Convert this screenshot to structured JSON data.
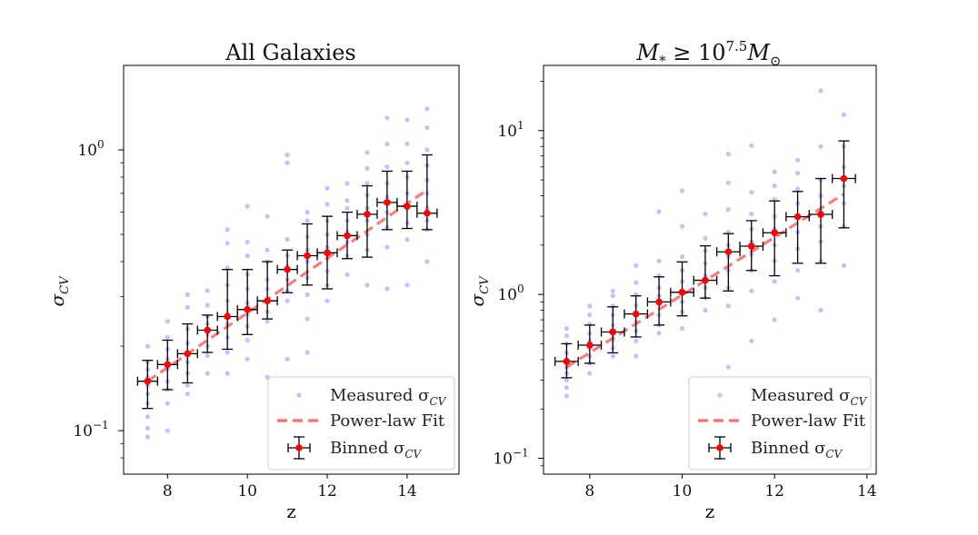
{
  "chart_data": [
    {
      "type": "scatter",
      "title": "All Galaxies",
      "xlabel": "z",
      "ylabel": "σ_CV",
      "xlim": [
        6.9,
        15.3
      ],
      "ylim": [
        0.07,
        2.0
      ],
      "yscale": "log",
      "xticks": [
        8,
        10,
        12,
        14
      ],
      "yticks": [
        {
          "value": 0.1,
          "base": "10",
          "exp": "−1"
        },
        {
          "value": 1.0,
          "base": "10",
          "exp": "0"
        }
      ],
      "legend": {
        "placement": "lower-right",
        "entries": [
          {
            "name": "Measured σ_CV",
            "main": "Measured σ",
            "sub": "CV"
          },
          {
            "name": "Power-law Fit",
            "main": "Power-law Fit",
            "sub": ""
          },
          {
            "name": "Binned σ_CV",
            "main": "Binned σ",
            "sub": "CV"
          }
        ]
      },
      "fit": {
        "x": [
          7.5,
          14.5
        ],
        "y": [
          0.15,
          0.72
        ]
      },
      "binned": {
        "x": [
          7.5,
          8.0,
          8.5,
          9.0,
          9.5,
          10.0,
          10.5,
          11.0,
          11.5,
          12.0,
          12.5,
          13.0,
          13.5,
          14.0,
          14.5
        ],
        "y": [
          0.15,
          0.172,
          0.188,
          0.228,
          0.255,
          0.27,
          0.29,
          0.375,
          0.42,
          0.43,
          0.495,
          0.59,
          0.65,
          0.63,
          0.595
        ],
        "ylow": [
          0.12,
          0.14,
          0.148,
          0.19,
          0.195,
          0.22,
          0.25,
          0.31,
          0.33,
          0.32,
          0.41,
          0.415,
          0.52,
          0.525,
          0.52
        ],
        "yhigh": [
          0.178,
          0.21,
          0.24,
          0.258,
          0.375,
          0.375,
          0.4,
          0.44,
          0.545,
          0.58,
          0.6,
          0.745,
          0.84,
          0.84,
          0.96
        ],
        "xerr": 0.25
      },
      "measured": [
        [
          7.5,
          0.095
        ],
        [
          7.5,
          0.102
        ],
        [
          7.5,
          0.112
        ],
        [
          7.5,
          0.125
        ],
        [
          7.5,
          0.135
        ],
        [
          7.5,
          0.145
        ],
        [
          7.5,
          0.155
        ],
        [
          7.5,
          0.165
        ],
        [
          7.5,
          0.175
        ],
        [
          7.5,
          0.2
        ],
        [
          8.0,
          0.1
        ],
        [
          8.0,
          0.125
        ],
        [
          8.0,
          0.14
        ],
        [
          8.0,
          0.15
        ],
        [
          8.0,
          0.165
        ],
        [
          8.0,
          0.18
        ],
        [
          8.0,
          0.195
        ],
        [
          8.0,
          0.215
        ],
        [
          8.0,
          0.245
        ],
        [
          8.5,
          0.135
        ],
        [
          8.5,
          0.145
        ],
        [
          8.5,
          0.16
        ],
        [
          8.5,
          0.175
        ],
        [
          8.5,
          0.19
        ],
        [
          8.5,
          0.205
        ],
        [
          8.5,
          0.23
        ],
        [
          8.5,
          0.275
        ],
        [
          8.5,
          0.305
        ],
        [
          9.0,
          0.16
        ],
        [
          9.0,
          0.185
        ],
        [
          9.0,
          0.2
        ],
        [
          9.0,
          0.22
        ],
        [
          9.0,
          0.24
        ],
        [
          9.0,
          0.255
        ],
        [
          9.0,
          0.28
        ],
        [
          9.0,
          0.315
        ],
        [
          9.5,
          0.16
        ],
        [
          9.5,
          0.19
        ],
        [
          9.5,
          0.215
        ],
        [
          9.5,
          0.24
        ],
        [
          9.5,
          0.26
        ],
        [
          9.5,
          0.29
        ],
        [
          9.5,
          0.33
        ],
        [
          9.5,
          0.38
        ],
        [
          9.5,
          0.465
        ],
        [
          9.5,
          0.52
        ],
        [
          10.0,
          0.18
        ],
        [
          10.0,
          0.21
        ],
        [
          10.0,
          0.235
        ],
        [
          10.0,
          0.26
        ],
        [
          10.0,
          0.285
        ],
        [
          10.0,
          0.32
        ],
        [
          10.0,
          0.36
        ],
        [
          10.0,
          0.42
        ],
        [
          10.0,
          0.47
        ],
        [
          10.0,
          0.63
        ],
        [
          10.5,
          0.155
        ],
        [
          10.5,
          0.245
        ],
        [
          10.5,
          0.265
        ],
        [
          10.5,
          0.29
        ],
        [
          10.5,
          0.32
        ],
        [
          10.5,
          0.345
        ],
        [
          10.5,
          0.4
        ],
        [
          10.5,
          0.44
        ],
        [
          10.5,
          0.58
        ],
        [
          11.0,
          0.18
        ],
        [
          11.0,
          0.29
        ],
        [
          11.0,
          0.315
        ],
        [
          11.0,
          0.345
        ],
        [
          11.0,
          0.385
        ],
        [
          11.0,
          0.42
        ],
        [
          11.0,
          0.48
        ],
        [
          11.0,
          0.9
        ],
        [
          11.0,
          0.96
        ],
        [
          11.5,
          0.19
        ],
        [
          11.5,
          0.25
        ],
        [
          11.5,
          0.305
        ],
        [
          11.5,
          0.35
        ],
        [
          11.5,
          0.4
        ],
        [
          11.5,
          0.44
        ],
        [
          11.5,
          0.49
        ],
        [
          11.5,
          0.56
        ],
        [
          11.5,
          0.6
        ],
        [
          12.0,
          0.29
        ],
        [
          12.0,
          0.33
        ],
        [
          12.0,
          0.37
        ],
        [
          12.0,
          0.41
        ],
        [
          12.0,
          0.45
        ],
        [
          12.0,
          0.5
        ],
        [
          12.0,
          0.56
        ],
        [
          12.0,
          0.64
        ],
        [
          12.0,
          0.73
        ],
        [
          12.5,
          0.36
        ],
        [
          12.5,
          0.42
        ],
        [
          12.5,
          0.47
        ],
        [
          12.5,
          0.51
        ],
        [
          12.5,
          0.56
        ],
        [
          12.5,
          0.62
        ],
        [
          12.5,
          0.66
        ],
        [
          12.5,
          0.76
        ],
        [
          13.0,
          0.33
        ],
        [
          13.0,
          0.44
        ],
        [
          13.0,
          0.5
        ],
        [
          13.0,
          0.56
        ],
        [
          13.0,
          0.62
        ],
        [
          13.0,
          0.69
        ],
        [
          13.0,
          0.76
        ],
        [
          13.0,
          0.86
        ],
        [
          13.0,
          0.98
        ],
        [
          13.5,
          0.32
        ],
        [
          13.5,
          0.45
        ],
        [
          13.5,
          0.53
        ],
        [
          13.5,
          0.6
        ],
        [
          13.5,
          0.68
        ],
        [
          13.5,
          0.76
        ],
        [
          13.5,
          0.87
        ],
        [
          13.5,
          1.05
        ],
        [
          13.5,
          1.3
        ],
        [
          14.0,
          0.33
        ],
        [
          14.0,
          0.48
        ],
        [
          14.0,
          0.55
        ],
        [
          14.0,
          0.62
        ],
        [
          14.0,
          0.7
        ],
        [
          14.0,
          0.8
        ],
        [
          14.0,
          0.9
        ],
        [
          14.0,
          1.05
        ],
        [
          14.0,
          1.28
        ],
        [
          14.5,
          0.4
        ],
        [
          14.5,
          0.52
        ],
        [
          14.5,
          0.56
        ],
        [
          14.5,
          0.62
        ],
        [
          14.5,
          0.7
        ],
        [
          14.5,
          0.78
        ],
        [
          14.5,
          0.88
        ],
        [
          14.5,
          1.0
        ],
        [
          14.5,
          1.2
        ],
        [
          14.5,
          1.4
        ]
      ]
    },
    {
      "type": "scatter",
      "title": "M_* ≥ 10^7.5 M_⊙",
      "title_parts": {
        "m": "M",
        "star": "*",
        "geq": " ≥ 10",
        "exp": "7.5",
        "m2": "M",
        "sun": "⊙"
      },
      "xlabel": "z",
      "ylabel": "σ_CV",
      "xlim": [
        7.0,
        14.2
      ],
      "ylim": [
        0.08,
        25.0
      ],
      "yscale": "log",
      "xticks": [
        8,
        10,
        12,
        14
      ],
      "yticks": [
        {
          "value": 0.1,
          "base": "10",
          "exp": "−1"
        },
        {
          "value": 1.0,
          "base": "10",
          "exp": "0"
        },
        {
          "value": 10.0,
          "base": "10",
          "exp": "1"
        }
      ],
      "legend": {
        "placement": "lower-right",
        "entries": [
          {
            "name": "Measured σ_CV",
            "main": "Measured σ",
            "sub": "CV"
          },
          {
            "name": "Power-law Fit",
            "main": "Power-law Fit",
            "sub": ""
          },
          {
            "name": "Binned σ_CV",
            "main": "Binned σ",
            "sub": "CV"
          }
        ]
      },
      "fit": {
        "x": [
          7.5,
          13.5
        ],
        "y": [
          0.36,
          4.1
        ]
      },
      "binned": {
        "x": [
          7.5,
          8.0,
          8.5,
          9.0,
          9.5,
          10.0,
          10.5,
          11.0,
          11.5,
          12.0,
          12.5,
          13.0,
          13.5
        ],
        "y": [
          0.39,
          0.49,
          0.59,
          0.76,
          0.9,
          1.03,
          1.22,
          1.82,
          1.97,
          2.38,
          2.98,
          3.08,
          5.1
        ],
        "ylow": [
          0.31,
          0.38,
          0.44,
          0.55,
          0.65,
          0.74,
          0.95,
          1.05,
          1.4,
          1.3,
          1.55,
          1.55,
          2.55
        ],
        "yhigh": [
          0.5,
          0.65,
          0.84,
          0.98,
          1.28,
          1.58,
          1.98,
          2.35,
          2.82,
          3.72,
          4.25,
          5.1,
          8.65
        ],
        "xerr": 0.25
      },
      "measured": [
        [
          7.5,
          0.24
        ],
        [
          7.5,
          0.27
        ],
        [
          7.5,
          0.3
        ],
        [
          7.5,
          0.33
        ],
        [
          7.5,
          0.36
        ],
        [
          7.5,
          0.4
        ],
        [
          7.5,
          0.44
        ],
        [
          7.5,
          0.5
        ],
        [
          7.5,
          0.56
        ],
        [
          7.5,
          0.62
        ],
        [
          8.0,
          0.33
        ],
        [
          8.0,
          0.38
        ],
        [
          8.0,
          0.42
        ],
        [
          8.0,
          0.47
        ],
        [
          8.0,
          0.52
        ],
        [
          8.0,
          0.58
        ],
        [
          8.0,
          0.66
        ],
        [
          8.0,
          0.75
        ],
        [
          8.0,
          0.85
        ],
        [
          8.5,
          0.42
        ],
        [
          8.5,
          0.47
        ],
        [
          8.5,
          0.53
        ],
        [
          8.5,
          0.58
        ],
        [
          8.5,
          0.65
        ],
        [
          8.5,
          0.75
        ],
        [
          8.5,
          0.85
        ],
        [
          8.5,
          0.98
        ],
        [
          8.5,
          1.05
        ],
        [
          9.0,
          0.42
        ],
        [
          9.0,
          0.52
        ],
        [
          9.0,
          0.6
        ],
        [
          9.0,
          0.68
        ],
        [
          9.0,
          0.76
        ],
        [
          9.0,
          0.86
        ],
        [
          9.0,
          1.0
        ],
        [
          9.0,
          1.18
        ],
        [
          9.0,
          1.5
        ],
        [
          9.5,
          0.58
        ],
        [
          9.5,
          0.65
        ],
        [
          9.5,
          0.75
        ],
        [
          9.5,
          0.88
        ],
        [
          9.5,
          0.98
        ],
        [
          9.5,
          1.1
        ],
        [
          9.5,
          1.3
        ],
        [
          9.5,
          1.6
        ],
        [
          9.5,
          3.2
        ],
        [
          10.0,
          0.62
        ],
        [
          10.0,
          0.78
        ],
        [
          10.0,
          0.9
        ],
        [
          10.0,
          1.05
        ],
        [
          10.0,
          1.2
        ],
        [
          10.0,
          1.4
        ],
        [
          10.0,
          1.7
        ],
        [
          10.0,
          2.6
        ],
        [
          10.0,
          4.3
        ],
        [
          10.5,
          0.8
        ],
        [
          10.5,
          0.95
        ],
        [
          10.5,
          1.1
        ],
        [
          10.5,
          1.3
        ],
        [
          10.5,
          1.55
        ],
        [
          10.5,
          1.85
        ],
        [
          10.5,
          2.2
        ],
        [
          10.5,
          3.1
        ],
        [
          11.0,
          0.36
        ],
        [
          11.0,
          0.85
        ],
        [
          11.0,
          1.1
        ],
        [
          11.0,
          1.4
        ],
        [
          11.0,
          1.7
        ],
        [
          11.0,
          2.0
        ],
        [
          11.0,
          2.4
        ],
        [
          11.0,
          3.3
        ],
        [
          11.0,
          4.8
        ],
        [
          11.0,
          7.2
        ],
        [
          11.5,
          0.52
        ],
        [
          11.5,
          1.05
        ],
        [
          11.5,
          1.4
        ],
        [
          11.5,
          1.75
        ],
        [
          11.5,
          2.1
        ],
        [
          11.5,
          2.5
        ],
        [
          11.5,
          3.1
        ],
        [
          11.5,
          4.2
        ],
        [
          11.5,
          8.1
        ],
        [
          12.0,
          0.7
        ],
        [
          12.0,
          1.2
        ],
        [
          12.0,
          1.6
        ],
        [
          12.0,
          2.0
        ],
        [
          12.0,
          2.5
        ],
        [
          12.0,
          3.0
        ],
        [
          12.0,
          3.8
        ],
        [
          12.0,
          4.6
        ],
        [
          12.0,
          5.6
        ],
        [
          12.5,
          0.95
        ],
        [
          12.5,
          1.4
        ],
        [
          12.5,
          1.9
        ],
        [
          12.5,
          2.4
        ],
        [
          12.5,
          3.0
        ],
        [
          12.5,
          3.6
        ],
        [
          12.5,
          4.4
        ],
        [
          12.5,
          5.5
        ],
        [
          12.5,
          6.6
        ],
        [
          13.0,
          0.8
        ],
        [
          13.0,
          1.6
        ],
        [
          13.0,
          2.1
        ],
        [
          13.0,
          2.6
        ],
        [
          13.0,
          3.2
        ],
        [
          13.0,
          4.0
        ],
        [
          13.0,
          5.0
        ],
        [
          13.0,
          8.0
        ],
        [
          13.0,
          17.5
        ],
        [
          13.5,
          1.5
        ],
        [
          13.5,
          2.6
        ],
        [
          13.5,
          3.6
        ],
        [
          13.5,
          4.6
        ],
        [
          13.5,
          6.0
        ],
        [
          13.5,
          8.0
        ],
        [
          13.5,
          12.5
        ]
      ]
    }
  ]
}
